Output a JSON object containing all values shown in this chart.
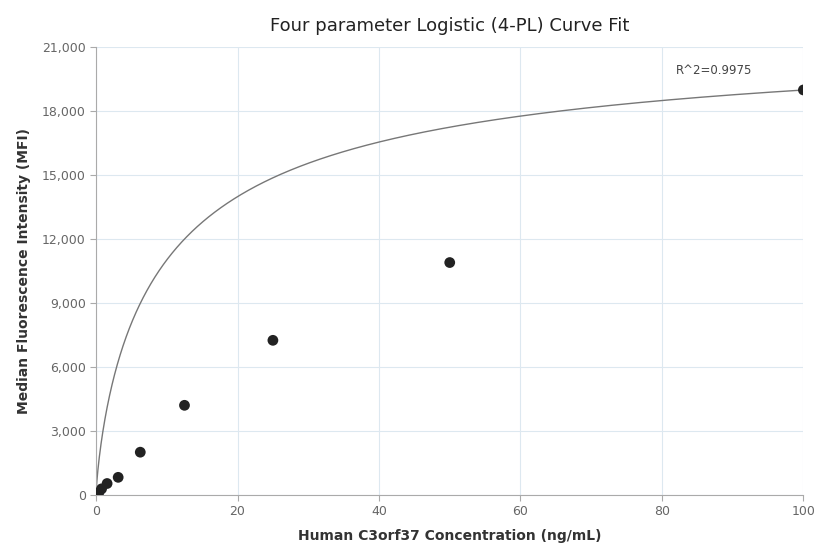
{
  "title": "Four parameter Logistic (4-PL) Curve Fit",
  "xlabel": "Human C3orf37 Concentration (ng/mL)",
  "ylabel": "Median Fluorescence Intensity (MFI)",
  "scatter_x": [
    0.39,
    0.78,
    1.56,
    3.125,
    6.25,
    12.5,
    25,
    50,
    100
  ],
  "scatter_y": [
    100,
    280,
    530,
    820,
    2000,
    4200,
    7250,
    10900,
    19000
  ],
  "r_squared": "R^2=0.9975",
  "r_squared_x": 82,
  "r_squared_y": 19600,
  "xlim": [
    0,
    100
  ],
  "ylim": [
    0,
    21000
  ],
  "yticks": [
    0,
    3000,
    6000,
    9000,
    12000,
    15000,
    18000,
    21000
  ],
  "ytick_labels": [
    "0",
    "3,000",
    "6,000",
    "9,000",
    "12,000",
    "15,000",
    "18,000",
    "21,000"
  ],
  "xticks": [
    0,
    20,
    40,
    60,
    80,
    100
  ],
  "xtick_labels": [
    "0",
    "20",
    "40",
    "60",
    "80",
    "100"
  ],
  "dot_color": "#222222",
  "line_color": "#777777",
  "grid_color": "#dde8f0",
  "background_color": "#ffffff",
  "title_fontsize": 13,
  "label_fontsize": 10,
  "tick_fontsize": 9,
  "annotation_fontsize": 8.5,
  "dot_size": 60,
  "tick_color": "#666666",
  "spine_color": "#aaaaaa"
}
